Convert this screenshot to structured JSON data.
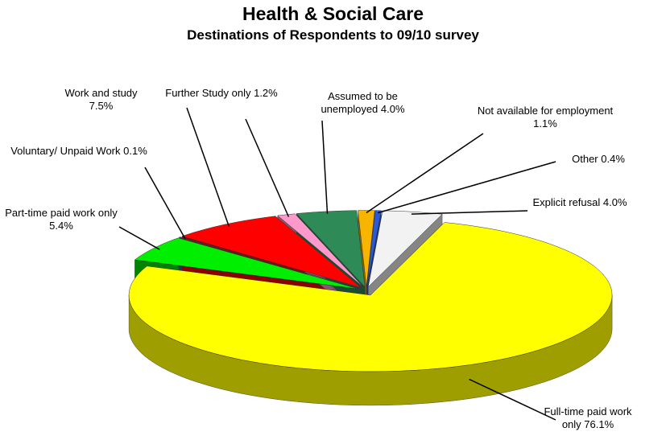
{
  "chart_data": {
    "type": "pie3d",
    "title": "Health & Social Care",
    "subtitle": "Destinations of Respondents to 09/10 survey",
    "categories": [
      "Not available for employment",
      "Other",
      "Explicit refusal",
      "Full-time paid work only",
      "Part-time paid work only",
      "Voluntary/ Unpaid Work",
      "Work and study",
      "Further Study only",
      "Assumed to be unemployed"
    ],
    "values": [
      1.1,
      0.4,
      4.0,
      76.1,
      5.4,
      0.1,
      7.5,
      1.2,
      4.0
    ],
    "value_labels": [
      "1.1%",
      "0.4%",
      "4.0%",
      "76.1%",
      "5.4%",
      "0.1%",
      "7.5%",
      "1.2%",
      "4.0%"
    ],
    "colors": [
      "#f7b500",
      "#2a5ad8",
      "#f2f2f2",
      "#ffff00",
      "#00ee00",
      "#2a5ad8",
      "#ff0000",
      "#ff99cc",
      "#2e8b57"
    ]
  }
}
